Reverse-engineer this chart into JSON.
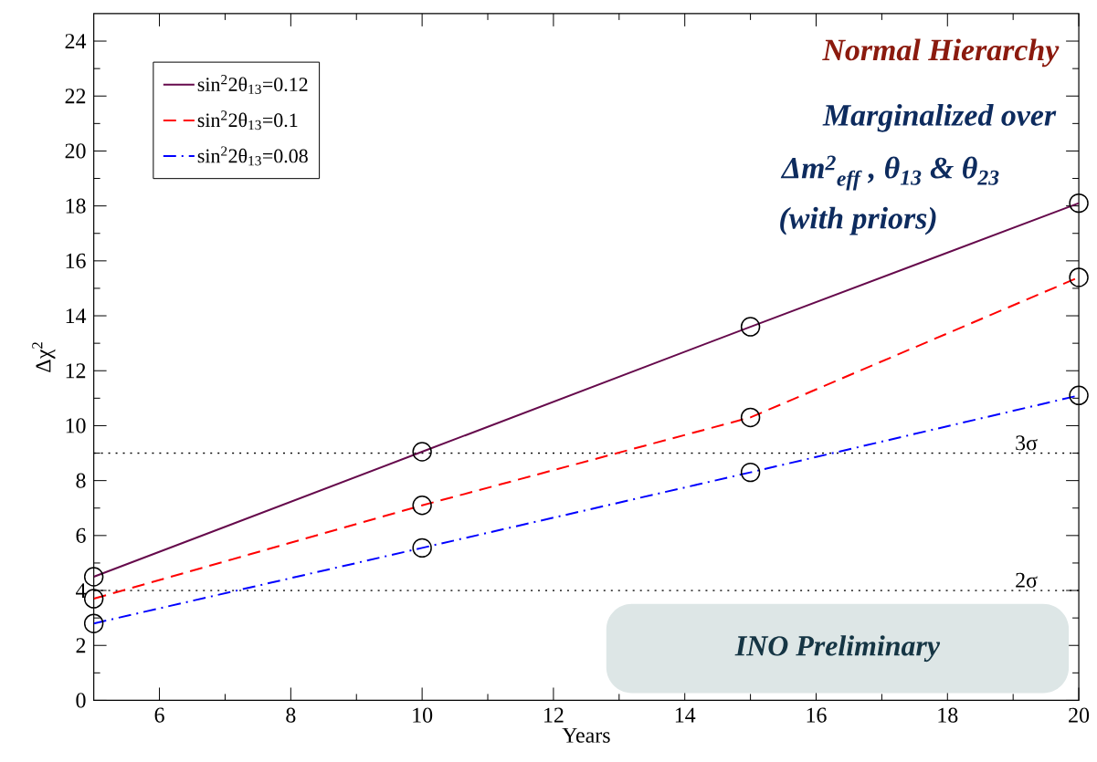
{
  "chart_data": {
    "type": "line",
    "x": [
      5,
      10,
      15,
      20
    ],
    "series": [
      {
        "name": "sin$^{2}$2θ$_{13}$=0.12",
        "color": "#660a4c",
        "line_style": "solid",
        "values": [
          4.5,
          9.05,
          13.6,
          18.1
        ]
      },
      {
        "name": "sin$^{2}$2θ$_{13}$=0.1",
        "color": "#ff0000",
        "line_style": "dashed",
        "values": [
          3.7,
          7.1,
          10.3,
          15.4
        ]
      },
      {
        "name": "sin$^{2}$2θ$_{13}$=0.08",
        "color": "#0000ff",
        "line_style": "dashdot",
        "values": [
          2.8,
          5.55,
          8.3,
          11.1
        ]
      }
    ],
    "xlabel": "Years",
    "ylabel": "Δχ$^{2}$",
    "xlim": [
      5,
      20
    ],
    "xticks": [
      6,
      8,
      10,
      12,
      14,
      16,
      18,
      20
    ],
    "ylim": [
      0,
      25
    ],
    "yticks": [
      0,
      2,
      4,
      6,
      8,
      10,
      12,
      14,
      16,
      18,
      20,
      22,
      24
    ],
    "marker": "circle",
    "grid": false,
    "legend": "top left",
    "ref_lines": [
      {
        "axis": "y",
        "value": 9,
        "label": "3σ",
        "line_style": "dotted"
      },
      {
        "axis": "y",
        "value": 4,
        "label": "2σ",
        "line_style": "dotted"
      }
    ],
    "annotations": [
      "Normal Hierarchy",
      "Marginalized over",
      "Δm$^{2}$$_{eff}$ , θ$_{13}$ & θ$_{23}$",
      "(with priors)",
      "INO Preliminary"
    ]
  }
}
